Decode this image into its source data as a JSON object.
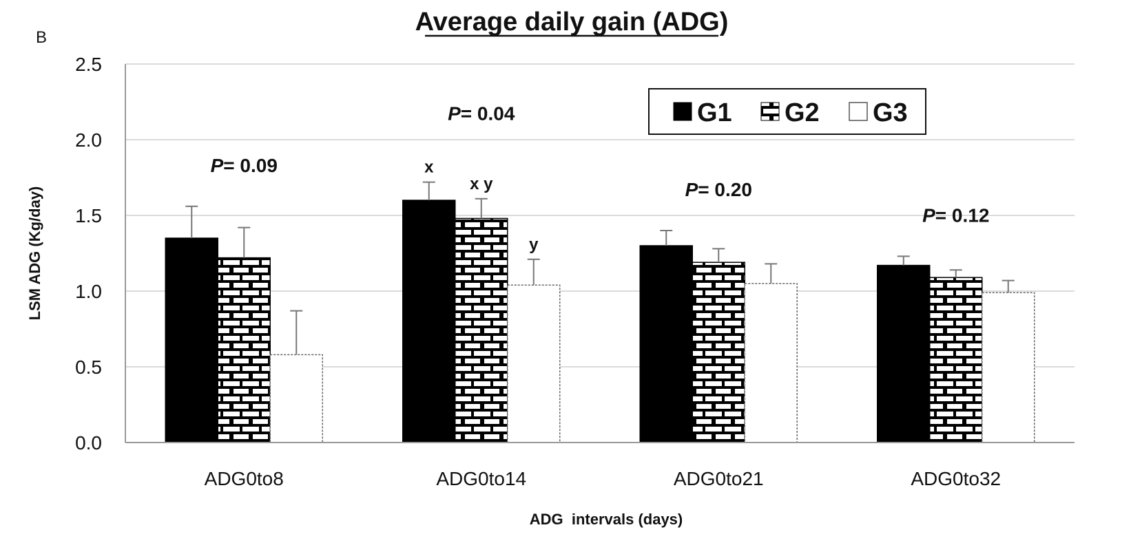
{
  "panel_label": "B",
  "chart_data": {
    "type": "bar",
    "title": "Average daily gain (ADG)",
    "xlabel": "ADG  intervals (days)",
    "ylabel": "LSM ADG (Kg/day)",
    "ylim": [
      0,
      2.5
    ],
    "yticks": [
      "0.0",
      "0.5",
      "1.0",
      "1.5",
      "2.0",
      "2.5"
    ],
    "grid": true,
    "legend_position": "top-right",
    "categories": [
      "ADG0to8",
      "ADG0to14",
      "ADG0to21",
      "ADG0to32"
    ],
    "series": [
      {
        "name": "G1",
        "pattern": "solid",
        "color": "#000000",
        "values": [
          1.35,
          1.6,
          1.3,
          1.17
        ],
        "errors": [
          0.21,
          0.12,
          0.1,
          0.06
        ]
      },
      {
        "name": "G2",
        "pattern": "brick",
        "color": "#000000",
        "values": [
          1.22,
          1.48,
          1.19,
          1.09
        ],
        "errors": [
          0.2,
          0.13,
          0.09,
          0.05
        ]
      },
      {
        "name": "G3",
        "pattern": "open",
        "color": "#ffffff",
        "values": [
          0.58,
          1.04,
          1.05,
          0.99
        ],
        "errors": [
          0.29,
          0.17,
          0.13,
          0.08
        ]
      }
    ],
    "pvalues": [
      "= 0.09",
      "= 0.04",
      "= 0.20",
      "= 0.12"
    ],
    "p_prefix": "P",
    "significance_letters": [
      [
        "",
        "",
        ""
      ],
      [
        "x",
        "x y",
        "y"
      ],
      [
        "",
        "",
        ""
      ],
      [
        "",
        "",
        ""
      ]
    ]
  }
}
